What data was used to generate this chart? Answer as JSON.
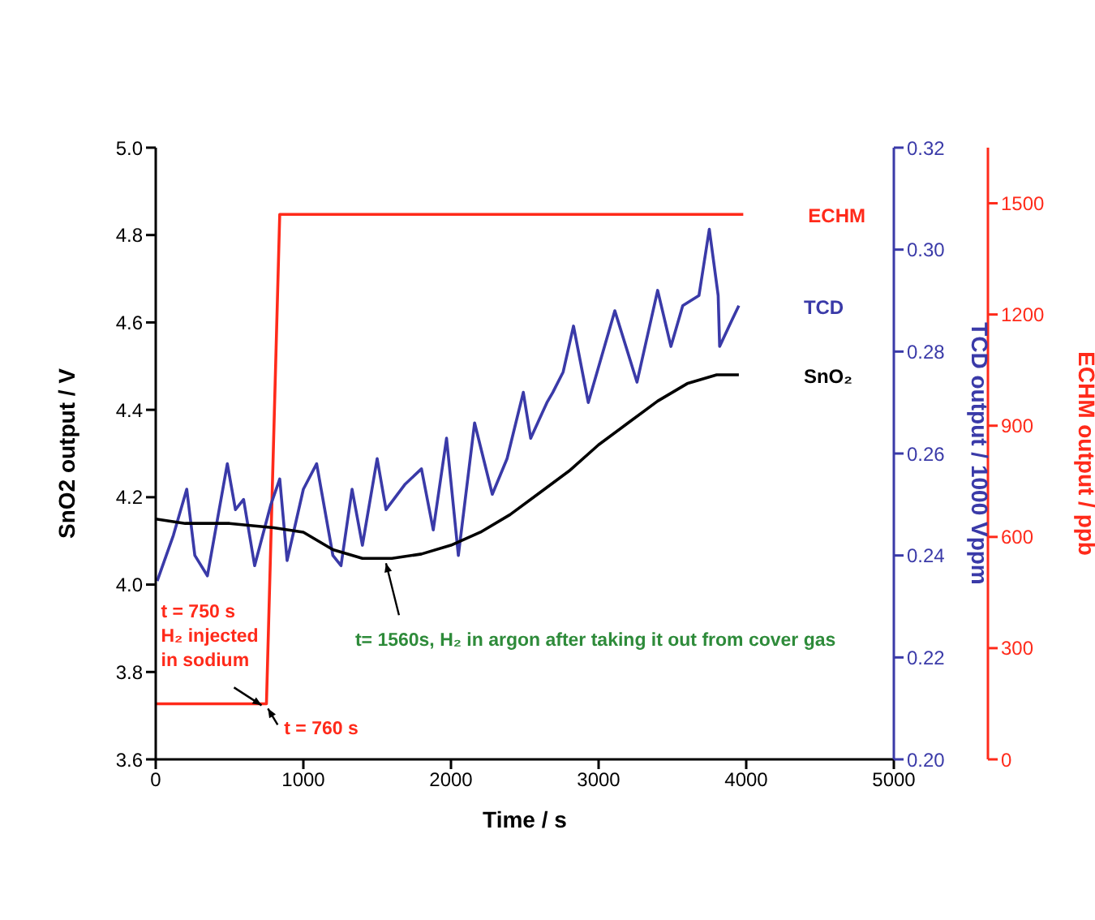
{
  "chart_data": {
    "type": "line",
    "xlabel": "Time / s",
    "ylabel": "SnO2 output / V",
    "y2label": "TCD output / 1000 Vppm",
    "y3label": "ECHM output / ppb",
    "xlim": [
      0,
      5000
    ],
    "xticks": [
      0,
      1000,
      2000,
      3000,
      4000,
      5000
    ],
    "ylim": [
      3.6,
      5.0
    ],
    "yticks": [
      {
        "value": 3.6,
        "label": "3.6"
      },
      {
        "value": 3.8,
        "label": "3.8"
      },
      {
        "value": 4.0,
        "label": "4.0"
      },
      {
        "value": 4.2,
        "label": "4.2"
      },
      {
        "value": 4.4,
        "label": "4.4"
      },
      {
        "value": 4.6,
        "label": "4.6"
      },
      {
        "value": 4.8,
        "label": "4.8"
      },
      {
        "value": 5.0,
        "label": "5.0"
      }
    ],
    "y2lim": [
      0.2,
      0.32
    ],
    "y2ticks": [
      {
        "value": 0.2,
        "label": "0.20"
      },
      {
        "value": 0.22,
        "label": "0.22"
      },
      {
        "value": 0.24,
        "label": "0.24"
      },
      {
        "value": 0.26,
        "label": "0.26"
      },
      {
        "value": 0.28,
        "label": "0.28"
      },
      {
        "value": 0.3,
        "label": "0.30"
      },
      {
        "value": 0.32,
        "label": "0.32"
      }
    ],
    "y3lim": [
      0,
      1650
    ],
    "y3ticks": [
      0,
      300,
      600,
      900,
      1200,
      1500
    ],
    "grid": false,
    "legend": false,
    "marker": "none",
    "line_style": "solid",
    "series": [
      {
        "name": "ECHM",
        "color": "#ff2a1a",
        "axis": "y3",
        "x": [
          0,
          750,
          840,
          3980
        ],
        "values": [
          150,
          150,
          1470,
          1470
        ]
      },
      {
        "name": "TCD",
        "color": "#3a3aa8",
        "axis": "y2",
        "x": [
          10,
          120,
          210,
          265,
          350,
          485,
          540,
          595,
          670,
          780,
          840,
          890,
          1000,
          1090,
          1200,
          1255,
          1330,
          1400,
          1500,
          1560,
          1690,
          1800,
          1880,
          1970,
          2050,
          2160,
          2280,
          2380,
          2490,
          2540,
          2650,
          2690,
          2760,
          2830,
          2930,
          3110,
          3260,
          3400,
          3490,
          3570,
          3680,
          3750,
          3810,
          3820,
          3900,
          3950
        ],
        "values": [
          0.235,
          0.244,
          0.253,
          0.24,
          0.236,
          0.258,
          0.249,
          0.251,
          0.238,
          0.25,
          0.255,
          0.239,
          0.253,
          0.258,
          0.24,
          0.238,
          0.253,
          0.242,
          0.259,
          0.249,
          0.254,
          0.257,
          0.245,
          0.263,
          0.24,
          0.266,
          0.252,
          0.259,
          0.272,
          0.263,
          0.27,
          0.272,
          0.276,
          0.285,
          0.27,
          0.288,
          0.274,
          0.292,
          0.281,
          0.289,
          0.291,
          0.304,
          0.291,
          0.281,
          0.286,
          0.289
        ]
      },
      {
        "name": "SnO₂",
        "color": "#000000",
        "axis": "y",
        "x": [
          0,
          200,
          500,
          800,
          1000,
          1200,
          1400,
          1600,
          1800,
          2000,
          2200,
          2400,
          2600,
          2800,
          3000,
          3200,
          3400,
          3600,
          3800,
          3950
        ],
        "values": [
          4.15,
          4.14,
          4.14,
          4.13,
          4.12,
          4.08,
          4.06,
          4.06,
          4.07,
          4.09,
          4.12,
          4.16,
          4.21,
          4.26,
          4.32,
          4.37,
          4.42,
          4.46,
          4.48,
          4.48
        ]
      }
    ],
    "annotations": [
      {
        "text": "t = 750 s\nH₂ injected\nin sodium",
        "x": 750,
        "y": 3.72
      },
      {
        "text": "t = 760 s",
        "x": 760,
        "y": 3.72
      },
      {
        "text": "t= 1560s, H₂ in argon after taking it out from cover gas",
        "x": 1560,
        "y": 4.06
      }
    ]
  }
}
